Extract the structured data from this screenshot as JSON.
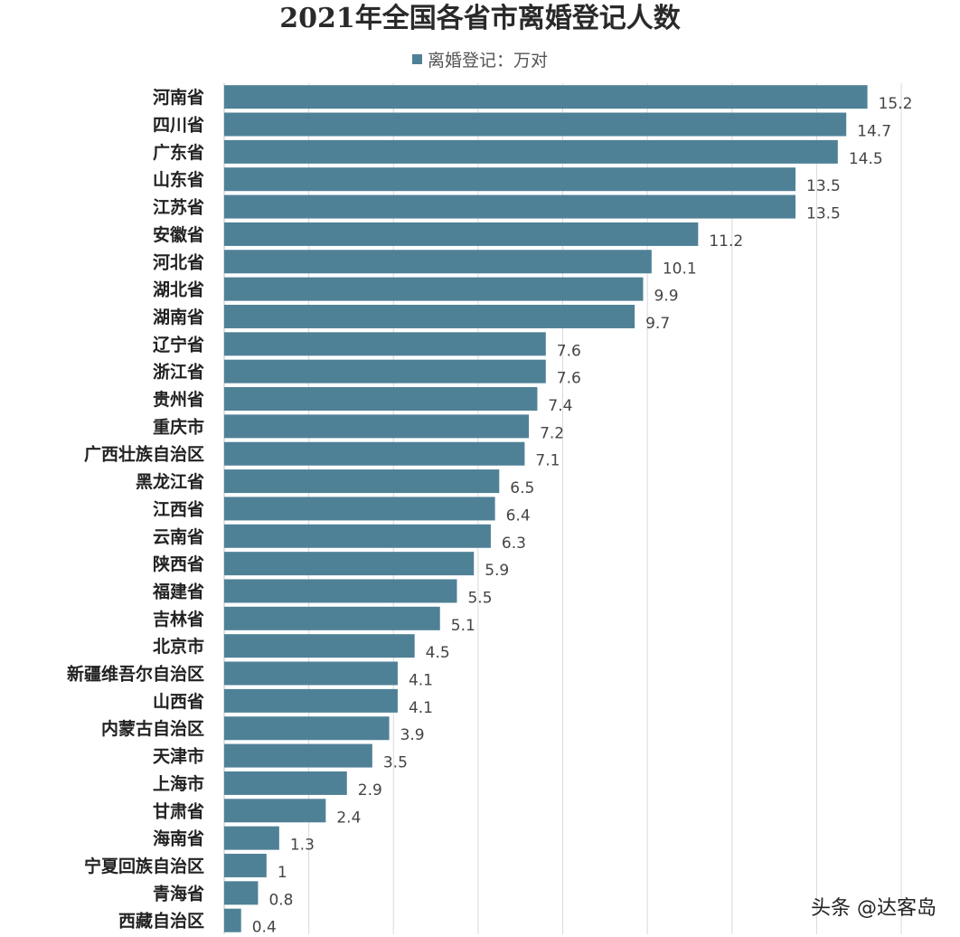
{
  "chart_data": {
    "type": "bar",
    "orientation": "horizontal",
    "title": "2021年全国各省市离婚登记人数",
    "legend": {
      "label": "离婚登记：万对",
      "placement": "top"
    },
    "categories": [
      "河南省",
      "四川省",
      "广东省",
      "山东省",
      "江苏省",
      "安徽省",
      "河北省",
      "湖北省",
      "湖南省",
      "辽宁省",
      "浙江省",
      "贵州省",
      "重庆市",
      "广西壮族自治区",
      "黑龙江省",
      "江西省",
      "云南省",
      "陕西省",
      "福建省",
      "吉林省",
      "北京市",
      "新疆维吾尔自治区",
      "山西省",
      "内蒙古自治区",
      "天津市",
      "上海市",
      "甘肃省",
      "海南省",
      "宁夏回族自治区",
      "青海省",
      "西藏自治区"
    ],
    "values": [
      15.2,
      14.7,
      14.5,
      13.5,
      13.5,
      11.2,
      10.1,
      9.9,
      9.7,
      7.6,
      7.6,
      7.4,
      7.2,
      7.1,
      6.5,
      6.4,
      6.3,
      5.9,
      5.5,
      5.1,
      4.5,
      4.1,
      4.1,
      3.9,
      3.5,
      2.9,
      2.4,
      1.3,
      1,
      0.8,
      0.4
    ],
    "value_labels": [
      "15.2",
      "14.7",
      "14.5",
      "13.5",
      "13.5",
      "11.2",
      "10.1",
      "9.9",
      "9.7",
      "7.6",
      "7.6",
      "7.4",
      "7.2",
      "7.1",
      "6.5",
      "6.4",
      "6.3",
      "5.9",
      "5.5",
      "5.1",
      "4.5",
      "4.1",
      "4.1",
      "3.9",
      "3.5",
      "2.9",
      "2.4",
      "1.3",
      "1",
      "0.8",
      "0.4"
    ],
    "xlim": [
      0,
      16
    ],
    "grid": true,
    "bar_color": "#4f8196",
    "grid_color": "#d9d9d9"
  },
  "watermark": "头条 @达客岛"
}
